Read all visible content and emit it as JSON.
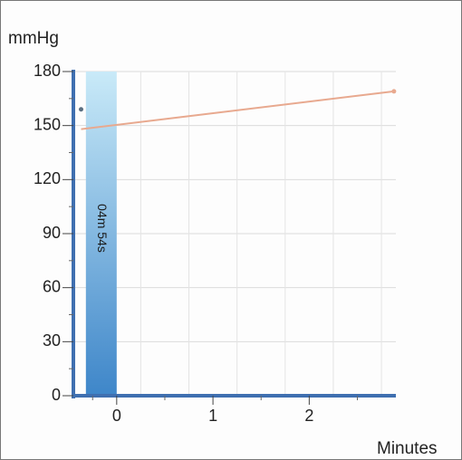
{
  "chart_data": {
    "type": "line",
    "ylabel": "mmHg",
    "xlabel": "Minutes",
    "ylim": [
      0,
      180
    ],
    "xlim": [
      -0.45,
      2.9
    ],
    "y_ticks": [
      "0",
      "30",
      "60",
      "90",
      "120",
      "150",
      "180"
    ],
    "x_ticks": [
      "0",
      "1",
      "2"
    ],
    "grid": true,
    "series": [
      {
        "x": [
          -0.37,
          2.88
        ],
        "y": [
          148,
          169
        ],
        "color": "#e8a98f"
      }
    ],
    "points": [
      {
        "x": -0.37,
        "y": 159
      }
    ],
    "shaded_band": {
      "x_start": -0.32,
      "x_end": 0,
      "label": "04m 54s",
      "color_top": "#c9eaf8",
      "color_bottom": "#3e86c9"
    },
    "axis_color": "#3f6fb0"
  }
}
